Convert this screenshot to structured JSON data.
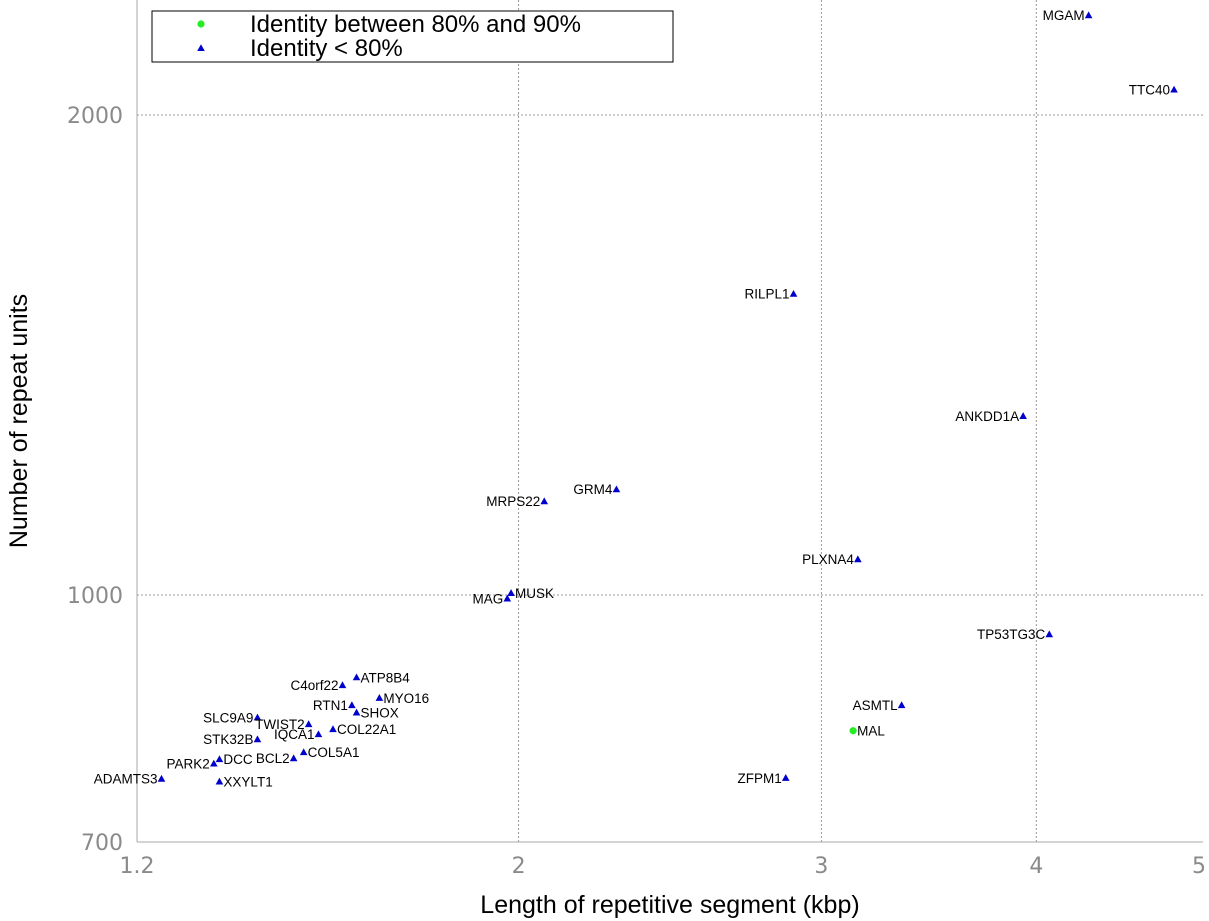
{
  "chart_data": {
    "type": "scatter",
    "xlabel": "Length of repetitive segment (kbp)",
    "ylabel": "Number of repeat units",
    "x_scale": "log",
    "y_scale": "log",
    "xlim": [
      1.2,
      5
    ],
    "ylim": [
      700,
      2320
    ],
    "x_ticks": [
      {
        "value": 1.2,
        "label": "1.2"
      },
      {
        "value": 2,
        "label": "2"
      },
      {
        "value": 3,
        "label": "3"
      },
      {
        "value": 4,
        "label": "4"
      },
      {
        "value": 5,
        "label": "5"
      }
    ],
    "y_ticks": [
      {
        "value": 700,
        "label": "700"
      },
      {
        "value": 1000,
        "label": "1000"
      },
      {
        "value": 2000,
        "label": "2000"
      }
    ],
    "grid": true,
    "legend_position": "top-left",
    "series": [
      {
        "name": "Identity between 80% and 90%",
        "marker": "circle",
        "color": "#22ee22",
        "points": [
          {
            "label": "MAL",
            "x": 3.13,
            "y": 822
          }
        ]
      },
      {
        "name": "Identity < 80%",
        "marker": "triangle",
        "color": "#0000cc",
        "points": [
          {
            "label": "MGAM",
            "x": 4.29,
            "y": 2310
          },
          {
            "label": "TTC40",
            "x": 4.81,
            "y": 2075
          },
          {
            "label": "RILPL1",
            "x": 2.89,
            "y": 1545
          },
          {
            "label": "ANKDD1A",
            "x": 3.93,
            "y": 1295
          },
          {
            "label": "GRM4",
            "x": 2.28,
            "y": 1165
          },
          {
            "label": "MRPS22",
            "x": 2.07,
            "y": 1145
          },
          {
            "label": "PLXNA4",
            "x": 3.15,
            "y": 1053
          },
          {
            "label": "MUSK",
            "x": 1.98,
            "y": 1003
          },
          {
            "label": "MAG",
            "x": 1.97,
            "y": 995
          },
          {
            "label": "TP53TG3C",
            "x": 4.07,
            "y": 945
          },
          {
            "label": "ATP8B4",
            "x": 1.61,
            "y": 888
          },
          {
            "label": "C4orf22",
            "x": 1.58,
            "y": 878
          },
          {
            "label": "MYO16",
            "x": 1.66,
            "y": 862
          },
          {
            "label": "RTN1",
            "x": 1.6,
            "y": 853
          },
          {
            "label": "ASMTL",
            "x": 3.34,
            "y": 853
          },
          {
            "label": "SHOX",
            "x": 1.61,
            "y": 844
          },
          {
            "label": "SLC9A9",
            "x": 1.41,
            "y": 838
          },
          {
            "label": "TWIST2",
            "x": 1.51,
            "y": 830
          },
          {
            "label": "COL22A1",
            "x": 1.56,
            "y": 824
          },
          {
            "label": "IQCA1",
            "x": 1.53,
            "y": 818
          },
          {
            "label": "STK32B",
            "x": 1.41,
            "y": 812
          },
          {
            "label": "COL5A1",
            "x": 1.5,
            "y": 797
          },
          {
            "label": "BCL2",
            "x": 1.48,
            "y": 790
          },
          {
            "label": "DCC",
            "x": 1.34,
            "y": 789
          },
          {
            "label": "PARK2",
            "x": 1.33,
            "y": 784
          },
          {
            "label": "ADAMTS3",
            "x": 1.24,
            "y": 767
          },
          {
            "label": "XXYLT1",
            "x": 1.34,
            "y": 764
          },
          {
            "label": "ZFPM1",
            "x": 2.86,
            "y": 768
          }
        ]
      }
    ]
  }
}
